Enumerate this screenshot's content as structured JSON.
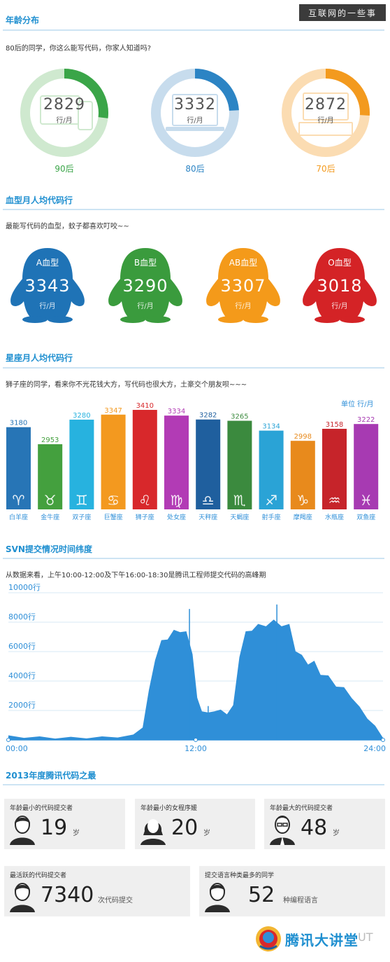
{
  "watermark": "互联网的一些事",
  "age": {
    "title": "年龄分布",
    "lead": "80后的同学，你这么能写代码，你家人知道吗?",
    "unit": "行/月",
    "items": [
      {
        "label": "90后",
        "value": "2829",
        "color": "#3aa548",
        "light": "#cfe9cf",
        "fraction": 0.27
      },
      {
        "label": "80后",
        "value": "3332",
        "color": "#2c84c4",
        "light": "#c7dced",
        "fraction": 0.24
      },
      {
        "label": "70后",
        "value": "2872",
        "color": "#f39a1e",
        "light": "#fbdcb2",
        "fraction": 0.26
      }
    ]
  },
  "blood": {
    "title": "血型月人均代码行",
    "lead": "最能写代码的血型，蚊子都喜欢叮咬~~",
    "unit": "行/月",
    "items": [
      {
        "type": "A血型",
        "value": "3343",
        "color": "#1f73b6"
      },
      {
        "type": "B血型",
        "value": "3290",
        "color": "#3a9b3d"
      },
      {
        "type": "AB血型",
        "value": "3307",
        "color": "#f49a1a"
      },
      {
        "type": "O血型",
        "value": "3018",
        "color": "#d42326"
      }
    ]
  },
  "zodiac": {
    "title": "星座月人均代码行",
    "lead": "狮子座的同学，看来你不光花钱大方，写代码也很大方，土豪交个朋友呗~~~",
    "unit_note": "单位 行/月"
  },
  "svn": {
    "title": "SVN提交情况时间纬度",
    "lead": "从数据来看，上午10:00-12:00及下午16:00-18:30是腾讯工程师提交代码的高峰期"
  },
  "records": {
    "title": "2013年度腾讯代码之最",
    "cards": [
      {
        "label": "年龄最小的代码提交者",
        "value": "19",
        "unit": "岁",
        "icon": "male-person-icon"
      },
      {
        "label": "年龄最小的女程序媛",
        "value": "20",
        "unit": "岁",
        "icon": "female-person-icon"
      },
      {
        "label": "年龄最大的代码提交者",
        "value": "48",
        "unit": "岁",
        "icon": "elder-person-icon"
      },
      {
        "label": "最活跃的代码提交者",
        "value": "7340",
        "unit": "次代码提交",
        "icon": "male-person-icon"
      },
      {
        "label": "提交语言种类最多的同学",
        "value": "52",
        "unit": "种编程语言",
        "icon": "male-person-icon"
      }
    ]
  },
  "footer": {
    "brand": "腾讯大讲堂",
    "suffix": "UT"
  },
  "chart_data": [
    {
      "type": "bar",
      "title": "星座月人均代码行",
      "unit": "行/月",
      "categories": [
        "白羊座",
        "金牛座",
        "双子座",
        "巨蟹座",
        "狮子座",
        "处女座",
        "天秤座",
        "天蝎座",
        "射手座",
        "摩羯座",
        "水瓶座",
        "双鱼座"
      ],
      "values": [
        3180,
        2953,
        3280,
        3347,
        3410,
        3334,
        3282,
        3265,
        3134,
        2998,
        3158,
        3222
      ],
      "symbols": [
        "♈",
        "♉",
        "♊",
        "♋",
        "♌",
        "♍",
        "♎",
        "♏",
        "♐",
        "♑",
        "♒",
        "♓"
      ],
      "colors": [
        "#2775b6",
        "#44a03e",
        "#27b2df",
        "#f3991f",
        "#d8282b",
        "#b23bb5",
        "#1f5f9e",
        "#3b8a3e",
        "#2aa3d6",
        "#e88a1c",
        "#c6242a",
        "#a73ab2"
      ]
    },
    {
      "type": "area",
      "title": "SVN提交情况时间纬度",
      "x_ticks": [
        "00:00",
        "12:00",
        "24:00"
      ],
      "y_ticks": [
        "2000行",
        "4000行",
        "6000行",
        "8000行",
        "10000行"
      ],
      "ylim": [
        0,
        10000
      ],
      "xlim": [
        0,
        24
      ],
      "color": "#2f8fd8",
      "x": [
        0,
        1,
        2,
        3,
        4,
        5,
        6,
        7,
        8,
        8.6,
        9,
        9.4,
        9.8,
        10.2,
        10.6,
        11,
        11.4,
        11.8,
        12.1,
        12.4,
        12.8,
        13.2,
        13.6,
        14,
        14.4,
        14.8,
        15.2,
        15.6,
        16,
        16.5,
        17,
        17.5,
        18,
        18.4,
        18.8,
        19.2,
        19.6,
        20,
        20.5,
        21,
        21.5,
        22,
        22.5,
        23,
        23.5,
        24
      ],
      "y": [
        250,
        200,
        180,
        150,
        150,
        160,
        180,
        220,
        300,
        900,
        3200,
        5600,
        6600,
        7000,
        7300,
        7500,
        7200,
        6000,
        2800,
        2000,
        1800,
        2000,
        2000,
        1800,
        2300,
        5800,
        7200,
        7600,
        7700,
        7900,
        8000,
        7900,
        7700,
        6200,
        5600,
        5300,
        5200,
        4600,
        4200,
        3800,
        3400,
        2900,
        2200,
        1500,
        900,
        200
      ]
    }
  ]
}
